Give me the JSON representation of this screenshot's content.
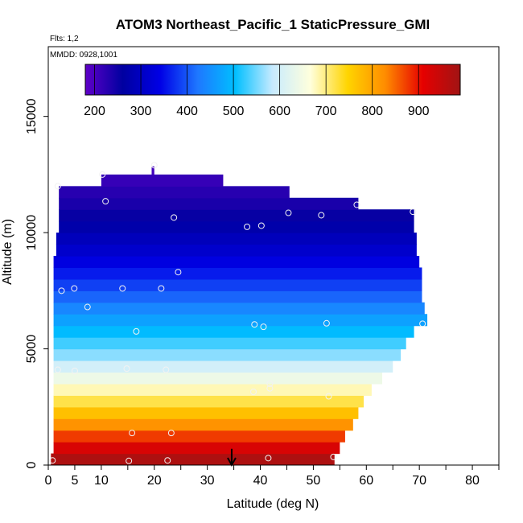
{
  "chart_data": {
    "type": "heatmap",
    "title": "ATOM3 Northeast_Pacific_1 StaticPressure_GMI",
    "flights_note": "Flts: 1,2",
    "dates_note": "MMDD: 0928,1001",
    "xlabel": "Latitude (deg N)",
    "ylabel": "Altitude (m)",
    "xlim": [
      0,
      85
    ],
    "ylim": [
      0,
      18000
    ],
    "x_ticks": [
      0,
      5,
      10,
      20,
      30,
      40,
      50,
      60,
      70,
      80
    ],
    "x_minor_ticks": [
      15,
      25,
      35,
      45,
      55,
      65,
      75,
      85
    ],
    "y_ticks": [
      0,
      5000,
      10000,
      15000
    ],
    "colorbar": {
      "range": [
        180,
        990
      ],
      "ticks": [
        200,
        300,
        400,
        500,
        600,
        700,
        800,
        900
      ],
      "colormap": [
        "#5f00c8",
        "#0000a0",
        "#0000e6",
        "#1e78ff",
        "#00bfff",
        "#c8ebff",
        "#ffffdc",
        "#ffd400",
        "#ff8c00",
        "#e60000",
        "#a01414"
      ]
    },
    "layers": [
      {
        "y0": 0,
        "y1": 500,
        "x0": 0.5,
        "x1": 54,
        "value": 975
      },
      {
        "y0": 500,
        "y1": 1000,
        "x0": 1.0,
        "x1": 55,
        "value": 925
      },
      {
        "y0": 1000,
        "y1": 1500,
        "x0": 1.0,
        "x1": 56,
        "value": 875
      },
      {
        "y0": 1500,
        "y1": 2000,
        "x0": 1.0,
        "x1": 57.5,
        "value": 820
      },
      {
        "y0": 2000,
        "y1": 2500,
        "x0": 1.0,
        "x1": 58.5,
        "value": 770
      },
      {
        "y0": 2500,
        "y1": 3000,
        "x0": 1.0,
        "x1": 59.5,
        "value": 720
      },
      {
        "y0": 3000,
        "y1": 3500,
        "x0": 1.0,
        "x1": 61,
        "value": 680
      },
      {
        "y0": 3500,
        "y1": 4000,
        "x0": 1.0,
        "x1": 63,
        "value": 640
      },
      {
        "y0": 4000,
        "y1": 4500,
        "x0": 1.0,
        "x1": 65,
        "value": 600
      },
      {
        "y0": 4500,
        "y1": 5000,
        "x0": 1.0,
        "x1": 66.5,
        "value": 560
      },
      {
        "y0": 5000,
        "y1": 5500,
        "x0": 1.0,
        "x1": 67.5,
        "value": 530
      },
      {
        "y0": 5500,
        "y1": 6000,
        "x0": 1.0,
        "x1": 69,
        "value": 500
      },
      {
        "y0": 6000,
        "y1": 6500,
        "x0": 1.0,
        "x1": 71.5,
        "value": 470
      },
      {
        "y0": 6500,
        "y1": 7000,
        "x0": 1.0,
        "x1": 71,
        "value": 440
      },
      {
        "y0": 7000,
        "y1": 7500,
        "x0": 1.0,
        "x1": 70.5,
        "value": 410
      },
      {
        "y0": 7500,
        "y1": 8000,
        "x0": 1.0,
        "x1": 70.5,
        "value": 385
      },
      {
        "y0": 8000,
        "y1": 8500,
        "x0": 1.0,
        "x1": 70.5,
        "value": 360
      },
      {
        "y0": 8500,
        "y1": 9000,
        "x0": 1.0,
        "x1": 70,
        "value": 335
      },
      {
        "y0": 9000,
        "y1": 9500,
        "x0": 1.5,
        "x1": 69.5,
        "value": 312
      },
      {
        "y0": 9500,
        "y1": 10000,
        "x0": 1.5,
        "x1": 69.5,
        "value": 292
      },
      {
        "y0": 10000,
        "y1": 10500,
        "x0": 2,
        "x1": 69,
        "value": 272
      },
      {
        "y0": 10500,
        "y1": 11000,
        "x0": 2,
        "x1": 69,
        "value": 255
      },
      {
        "y0": 11000,
        "y1": 11500,
        "x0": 2,
        "x1": 58.5,
        "value": 240
      },
      {
        "y0": 11500,
        "y1": 12000,
        "x0": 2,
        "x1": 45.5,
        "value": 228
      },
      {
        "y0": 12000,
        "y1": 12500,
        "x0": 10,
        "x1": 33,
        "value": 215
      },
      {
        "y0": 12500,
        "y1": 12850,
        "x0": 19.5,
        "x1": 20,
        "value": 205
      }
    ],
    "sample_points": [
      {
        "x": 0.8,
        "y": 200
      },
      {
        "x": 15.2,
        "y": 180
      },
      {
        "x": 22.5,
        "y": 200
      },
      {
        "x": 41.5,
        "y": 300
      },
      {
        "x": 53.8,
        "y": 350
      },
      {
        "x": 15.8,
        "y": 1380
      },
      {
        "x": 23.2,
        "y": 1380
      },
      {
        "x": 38.7,
        "y": 3150
      },
      {
        "x": 41.8,
        "y": 3300
      },
      {
        "x": 41.8,
        "y": 3500
      },
      {
        "x": 52.9,
        "y": 2960
      },
      {
        "x": 1.8,
        "y": 4100
      },
      {
        "x": 5.0,
        "y": 4050
      },
      {
        "x": 14.8,
        "y": 4150
      },
      {
        "x": 22.2,
        "y": 4100
      },
      {
        "x": 16.6,
        "y": 5750
      },
      {
        "x": 38.9,
        "y": 6050
      },
      {
        "x": 40.6,
        "y": 5950
      },
      {
        "x": 52.5,
        "y": 6100
      },
      {
        "x": 70.6,
        "y": 6080
      },
      {
        "x": 2.5,
        "y": 7500
      },
      {
        "x": 4.9,
        "y": 7600
      },
      {
        "x": 7.4,
        "y": 6800
      },
      {
        "x": 14.0,
        "y": 7600
      },
      {
        "x": 21.3,
        "y": 7600
      },
      {
        "x": 24.5,
        "y": 8300
      },
      {
        "x": 37.5,
        "y": 10250
      },
      {
        "x": 40.2,
        "y": 10300
      },
      {
        "x": 23.7,
        "y": 10650
      },
      {
        "x": 45.3,
        "y": 10850
      },
      {
        "x": 51.5,
        "y": 10750
      },
      {
        "x": 58.2,
        "y": 11200
      },
      {
        "x": 68.8,
        "y": 10900
      },
      {
        "x": 10.8,
        "y": 11350
      },
      {
        "x": 1.8,
        "y": 12000
      },
      {
        "x": 10.2,
        "y": 12500
      },
      {
        "x": 20.0,
        "y": 12900
      }
    ],
    "arrow_marker": {
      "x": 34.6,
      "y_start": 700,
      "y_end": 0
    }
  }
}
